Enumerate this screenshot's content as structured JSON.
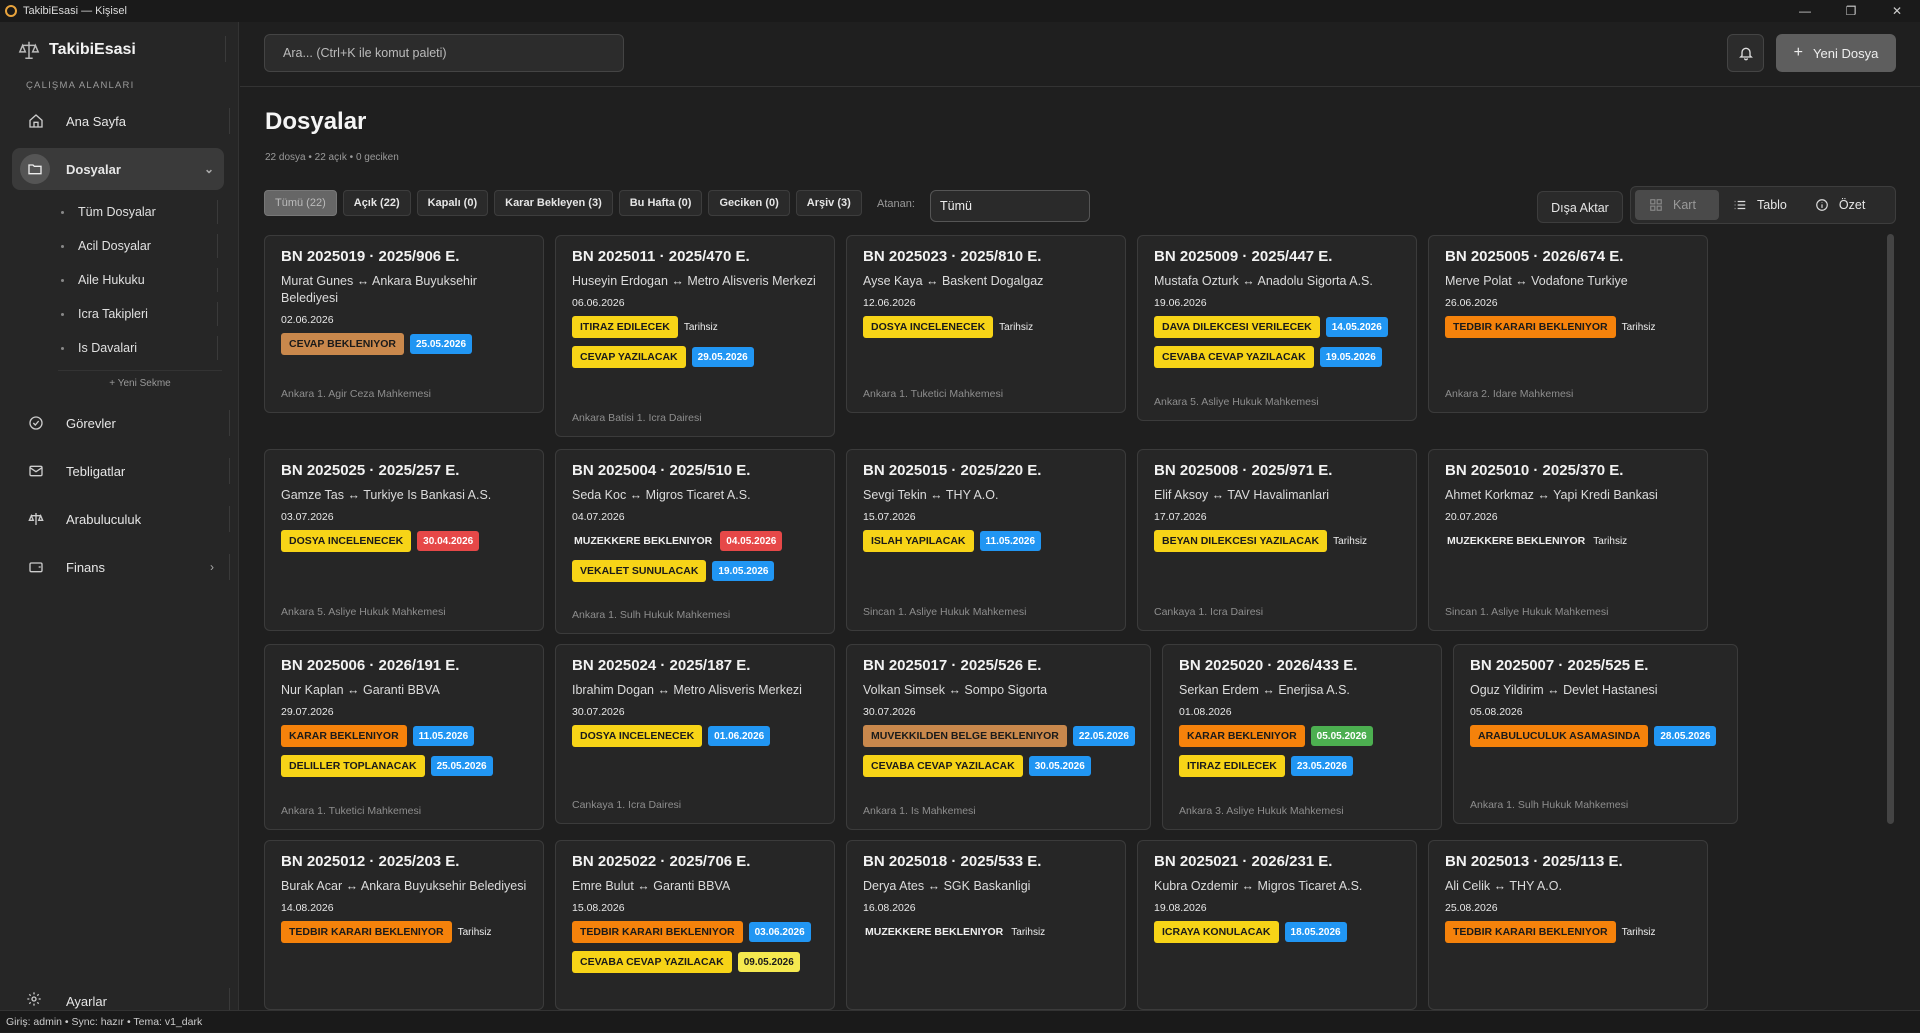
{
  "window": {
    "title": "TakibiEsasi — Kişisel"
  },
  "sidebar": {
    "brand": "TakibiEsasi",
    "section_label": "ÇALIŞMA ALANLARI",
    "items": [
      {
        "label": "Ana Sayfa",
        "icon": "home-icon"
      },
      {
        "label": "Dosyalar",
        "icon": "folder-icon"
      },
      {
        "label": "Görevler",
        "icon": "check-circle-icon"
      },
      {
        "label": "Tebligatlar",
        "icon": "mail-icon"
      },
      {
        "label": "Arabuluculuk",
        "icon": "scale-icon"
      },
      {
        "label": "Finans",
        "icon": "wallet-icon"
      }
    ],
    "subitems": [
      "Tüm Dosyalar",
      "Acil Dosyalar",
      "Aile Hukuku",
      "Icra Takipleri",
      "Is Davalari"
    ],
    "new_tab": "+ Yeni Sekme",
    "settings": "Ayarlar"
  },
  "topbar": {
    "search_placeholder": "Ara...   (Ctrl+K ile komut paleti)",
    "new_file": "Yeni Dosya"
  },
  "page": {
    "title": "Dosyalar",
    "summary": "22 dosya • 22 açık • 0 geciken",
    "filters": [
      "Tümü (22)",
      "Açık (22)",
      "Kapalı (0)",
      "Karar Bekleyen (3)",
      "Bu Hafta (0)",
      "Geciken (0)",
      "Arşiv (3)"
    ],
    "assignee_label": "Atanan:",
    "assignee_value": "Tümü",
    "export": "Dışa Aktar",
    "views": [
      "Kart",
      "Tablo",
      "Özet"
    ]
  },
  "colors": {
    "orange": "#f5820b",
    "brown": "#c9884c",
    "yellow": "#f7d417",
    "blue": "#2196f3",
    "red": "#e64848",
    "green": "#4caf50",
    "paleyellow": "#f5e94f"
  },
  "cards": [
    {
      "id": "BN 2025019",
      "esas": "2025/906 E.",
      "parties": "Murat Gunes ↔ Ankara Buyuksehir Belediyesi",
      "date": "02.06.2026",
      "tags": [
        {
          "label": "CEVAP BEKLENIYOR",
          "color": "brown",
          "due": "25.05.2026",
          "dueColor": "blue"
        }
      ],
      "court": "Ankara 1. Agir Ceza Mahkemesi"
    },
    {
      "id": "BN 2025011",
      "esas": "2025/470 E.",
      "parties": "Huseyin Erdogan ↔ Metro Alisveris Merkezi",
      "date": "06.06.2026",
      "tags": [
        {
          "label": "ITIRAZ EDILECEK",
          "color": "yellow",
          "due": "Tarihsiz",
          "dueColor": ""
        },
        {
          "label": "CEVAP YAZILACAK",
          "color": "yellow",
          "due": "29.05.2026",
          "dueColor": "blue"
        }
      ],
      "court": "Ankara Batisi 1. Icra Dairesi"
    },
    {
      "id": "BN 2025023",
      "esas": "2025/810 E.",
      "parties": "Ayse Kaya ↔ Baskent Dogalgaz",
      "date": "12.06.2026",
      "tags": [
        {
          "label": "DOSYA INCELENECEK",
          "color": "yellow",
          "due": "Tarihsiz",
          "dueColor": ""
        }
      ],
      "court": "Ankara 1. Tuketici Mahkemesi"
    },
    {
      "id": "BN 2025009",
      "esas": "2025/447 E.",
      "parties": "Mustafa Ozturk ↔ Anadolu Sigorta A.S.",
      "date": "19.06.2026",
      "tags": [
        {
          "label": "DAVA DILEKCESI VERILECEK",
          "color": "yellow",
          "due": "14.05.2026",
          "dueColor": "blue"
        },
        {
          "label": "CEVABA CEVAP YAZILACAK",
          "color": "yellow",
          "due": "19.05.2026",
          "dueColor": "blue"
        }
      ],
      "court": "Ankara 5. Asliye Hukuk Mahkemesi"
    },
    {
      "id": "BN 2025005",
      "esas": "2026/674 E.",
      "parties": "Merve Polat ↔ Vodafone Turkiye",
      "date": "26.06.2026",
      "tags": [
        {
          "label": "TEDBIR KARARI BEKLENIYOR",
          "color": "orange",
          "due": "Tarihsiz",
          "dueColor": ""
        }
      ],
      "court": "Ankara 2. Idare Mahkemesi"
    },
    {
      "id": "BN 2025025",
      "esas": "2025/257 E.",
      "parties": "Gamze Tas ↔ Turkiye Is Bankasi A.S.",
      "date": "03.07.2026",
      "tags": [
        {
          "label": "DOSYA INCELENECEK",
          "color": "yellow",
          "due": "30.04.2026",
          "dueColor": "red"
        }
      ],
      "court": "Ankara 5. Asliye Hukuk Mahkemesi"
    },
    {
      "id": "BN 2025004",
      "esas": "2025/510 E.",
      "parties": "Seda Koc ↔ Migros Ticaret A.S.",
      "date": "04.07.2026",
      "tags": [
        {
          "label": "MUZEKKERE BEKLENIYOR",
          "color": "",
          "due": "04.05.2026",
          "dueColor": "red"
        },
        {
          "label": "VEKALET SUNULACAK",
          "color": "yellow",
          "due": "19.05.2026",
          "dueColor": "blue"
        }
      ],
      "court": "Ankara 1. Sulh Hukuk Mahkemesi"
    },
    {
      "id": "BN 2025015",
      "esas": "2025/220 E.",
      "parties": "Sevgi Tekin ↔ THY A.O.",
      "date": "15.07.2026",
      "tags": [
        {
          "label": "ISLAH YAPILACAK",
          "color": "yellow",
          "due": "11.05.2026",
          "dueColor": "blue"
        }
      ],
      "court": "Sincan 1. Asliye Hukuk Mahkemesi"
    },
    {
      "id": "BN 2025008",
      "esas": "2025/971 E.",
      "parties": "Elif Aksoy ↔ TAV Havalimanlari",
      "date": "17.07.2026",
      "tags": [
        {
          "label": "BEYAN DILEKCESI YAZILACAK",
          "color": "yellow",
          "due": "Tarihsiz",
          "dueColor": ""
        }
      ],
      "court": "Cankaya 1. Icra Dairesi"
    },
    {
      "id": "BN 2025010",
      "esas": "2025/370 E.",
      "parties": "Ahmet Korkmaz ↔ Yapi Kredi Bankasi",
      "date": "20.07.2026",
      "tags": [
        {
          "label": "MUZEKKERE BEKLENIYOR",
          "color": "",
          "due": "Tarihsiz",
          "dueColor": ""
        }
      ],
      "court": "Sincan 1. Asliye Hukuk Mahkemesi"
    },
    {
      "id": "BN 2025006",
      "esas": "2026/191 E.",
      "parties": "Nur Kaplan ↔ Garanti BBVA",
      "date": "29.07.2026",
      "tags": [
        {
          "label": "KARAR BEKLENIYOR",
          "color": "orange",
          "due": "11.05.2026",
          "dueColor": "blue"
        },
        {
          "label": "DELILLER TOPLANACAK",
          "color": "yellow",
          "due": "25.05.2026",
          "dueColor": "blue"
        }
      ],
      "court": "Ankara 1. Tuketici Mahkemesi"
    },
    {
      "id": "BN 2025024",
      "esas": "2025/187 E.",
      "parties": "Ibrahim Dogan ↔ Metro Alisveris Merkezi",
      "date": "30.07.2026",
      "tags": [
        {
          "label": "DOSYA INCELENECEK",
          "color": "yellow",
          "due": "01.06.2026",
          "dueColor": "blue"
        }
      ],
      "court": "Cankaya 1. Icra Dairesi"
    },
    {
      "id": "BN 2025017",
      "esas": "2025/526 E.",
      "parties": "Volkan Simsek ↔ Sompo Sigorta",
      "date": "30.07.2026",
      "tags": [
        {
          "label": "MUVEKKILDEN BELGE BEKLENIYOR",
          "color": "brown",
          "due": "22.05.2026",
          "dueColor": "blue"
        },
        {
          "label": "CEVABA CEVAP YAZILACAK",
          "color": "yellow",
          "due": "30.05.2026",
          "dueColor": "blue"
        }
      ],
      "court": "Ankara 1. Is Mahkemesi"
    },
    {
      "id": "BN 2025020",
      "esas": "2026/433 E.",
      "parties": "Serkan Erdem ↔ Enerjisa A.S.",
      "date": "01.08.2026",
      "tags": [
        {
          "label": "KARAR BEKLENIYOR",
          "color": "orange",
          "due": "05.05.2026",
          "dueColor": "green"
        },
        {
          "label": "ITIRAZ EDILECEK",
          "color": "yellow",
          "due": "23.05.2026",
          "dueColor": "blue"
        }
      ],
      "court": "Ankara 3. Asliye Hukuk Mahkemesi"
    },
    {
      "id": "BN 2025007",
      "esas": "2025/525 E.",
      "parties": "Oguz Yildirim ↔ Devlet Hastanesi",
      "date": "05.08.2026",
      "tags": [
        {
          "label": "ARABULUCULUK ASAMASINDA",
          "color": "orange",
          "due": "28.05.2026",
          "dueColor": "blue"
        }
      ],
      "court": "Ankara 1. Sulh Hukuk Mahkemesi"
    },
    {
      "id": "BN 2025012",
      "esas": "2025/203 E.",
      "parties": "Burak Acar ↔ Ankara Buyuksehir Belediyesi",
      "date": "14.08.2026",
      "tags": [
        {
          "label": "TEDBIR KARARI BEKLENIYOR",
          "color": "orange",
          "due": "Tarihsiz",
          "dueColor": ""
        }
      ],
      "court": ""
    },
    {
      "id": "BN 2025022",
      "esas": "2025/706 E.",
      "parties": "Emre Bulut ↔ Garanti BBVA",
      "date": "15.08.2026",
      "tags": [
        {
          "label": "TEDBIR KARARI BEKLENIYOR",
          "color": "orange",
          "due": "03.06.2026",
          "dueColor": "blue"
        },
        {
          "label": "CEVABA CEVAP YAZILACAK",
          "color": "yellow",
          "due": "09.05.2026",
          "dueColor": "paleyellow"
        }
      ],
      "court": ""
    },
    {
      "id": "BN 2025018",
      "esas": "2025/533 E.",
      "parties": "Derya Ates ↔ SGK Baskanligi",
      "date": "16.08.2026",
      "tags": [
        {
          "label": "MUZEKKERE BEKLENIYOR",
          "color": "",
          "due": "Tarihsiz",
          "dueColor": ""
        }
      ],
      "court": ""
    },
    {
      "id": "BN 2025021",
      "esas": "2026/231 E.",
      "parties": "Kubra Ozdemir ↔ Migros Ticaret A.S.",
      "date": "19.08.2026",
      "tags": [
        {
          "label": "ICRAYA KONULACAK",
          "color": "yellow",
          "due": "18.05.2026",
          "dueColor": "blue"
        }
      ],
      "court": ""
    },
    {
      "id": "BN 2025013",
      "esas": "2025/113 E.",
      "parties": "Ali Celik ↔ THY A.O.",
      "date": "25.08.2026",
      "tags": [
        {
          "label": "TEDBIR KARARI BEKLENIYOR",
          "color": "orange",
          "due": "Tarihsiz",
          "dueColor": ""
        }
      ],
      "court": ""
    }
  ],
  "statusbar": "Giriş: admin   •   Sync: hazır   •   Tema: v1_dark"
}
